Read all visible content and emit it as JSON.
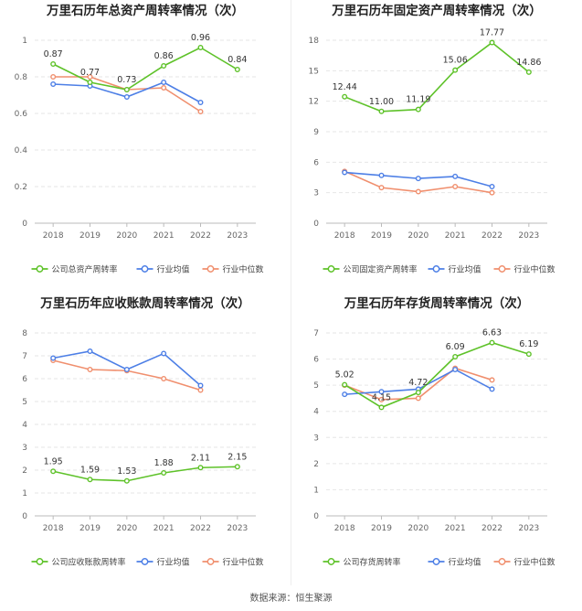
{
  "source": "数据来源：恒生聚源",
  "colors": {
    "company": "#5ec229",
    "avg": "#4d7fe6",
    "median": "#f08f6e"
  },
  "chart_data": [
    {
      "type": "line",
      "title": "万里石历年总资产周转率情况（次）",
      "categories": [
        "2018",
        "2019",
        "2020",
        "2021",
        "2022",
        "2023"
      ],
      "yticks": [
        0,
        0.2,
        0.4,
        0.6,
        0.8,
        1
      ],
      "ytick_labels": [
        "0",
        "0.2",
        "0.4",
        "0.6",
        "0.8",
        "1"
      ],
      "ylim": [
        0,
        1
      ],
      "series": [
        {
          "name": "公司总资产周转率",
          "key": "company",
          "values": [
            0.87,
            0.77,
            0.73,
            0.86,
            0.96,
            0.84
          ],
          "labels": [
            "0.87",
            "0.77",
            "0.73",
            "0.86",
            "0.96",
            "0.84"
          ]
        },
        {
          "name": "行业均值",
          "key": "avg",
          "values": [
            0.76,
            0.75,
            0.69,
            0.77,
            0.66,
            null
          ]
        },
        {
          "name": "行业中位数",
          "key": "median",
          "values": [
            0.8,
            0.8,
            0.73,
            0.74,
            0.61,
            null
          ]
        }
      ]
    },
    {
      "type": "line",
      "title": "万里石历年固定资产周转率情况（次）",
      "categories": [
        "2018",
        "2019",
        "2020",
        "2021",
        "2022",
        "2023"
      ],
      "yticks": [
        0,
        3,
        6,
        9,
        12,
        15,
        18
      ],
      "ytick_labels": [
        "0",
        "3",
        "6",
        "9",
        "12",
        "15",
        "18"
      ],
      "ylim": [
        0,
        18
      ],
      "series": [
        {
          "name": "公司固定资产周转率",
          "key": "company",
          "values": [
            12.44,
            11.0,
            11.19,
            15.06,
            17.77,
            14.86
          ],
          "labels": [
            "12.44",
            "11.00",
            "11.19",
            "15.06",
            "17.77",
            "14.86"
          ]
        },
        {
          "name": "行业均值",
          "key": "avg",
          "values": [
            5.0,
            4.7,
            4.4,
            4.6,
            3.6,
            null
          ]
        },
        {
          "name": "行业中位数",
          "key": "median",
          "values": [
            5.1,
            3.5,
            3.1,
            3.6,
            3.0,
            null
          ]
        }
      ]
    },
    {
      "type": "line",
      "title": "万里石历年应收账款周转率情况（次）",
      "categories": [
        "2018",
        "2019",
        "2020",
        "2021",
        "2022",
        "2023"
      ],
      "yticks": [
        0,
        1,
        2,
        3,
        4,
        5,
        6,
        7,
        8
      ],
      "ytick_labels": [
        "0",
        "1",
        "2",
        "3",
        "4",
        "5",
        "6",
        "7",
        "8"
      ],
      "ylim": [
        0,
        8
      ],
      "series": [
        {
          "name": "公司应收账款周转率",
          "key": "company",
          "values": [
            1.95,
            1.59,
            1.53,
            1.88,
            2.11,
            2.15
          ],
          "labels": [
            "1.95",
            "1.59",
            "1.53",
            "1.88",
            "2.11",
            "2.15"
          ]
        },
        {
          "name": "行业均值",
          "key": "avg",
          "values": [
            6.9,
            7.2,
            6.4,
            7.1,
            5.7,
            null
          ]
        },
        {
          "name": "行业中位数",
          "key": "median",
          "values": [
            6.8,
            6.4,
            6.35,
            6.0,
            5.5,
            null
          ]
        }
      ]
    },
    {
      "type": "line",
      "title": "万里石历年存货周转率情况（次）",
      "categories": [
        "2018",
        "2019",
        "2020",
        "2021",
        "2022",
        "2023"
      ],
      "yticks": [
        0,
        1,
        2,
        3,
        4,
        5,
        6,
        7
      ],
      "ytick_labels": [
        "0",
        "1",
        "2",
        "3",
        "4",
        "5",
        "6",
        "7"
      ],
      "ylim": [
        0,
        7
      ],
      "series": [
        {
          "name": "公司存货周转率",
          "key": "company",
          "values": [
            5.02,
            4.15,
            4.72,
            6.09,
            6.63,
            6.19
          ],
          "labels": [
            "5.02",
            "4.15",
            "4.72",
            "6.09",
            "6.63",
            "6.19"
          ]
        },
        {
          "name": "行业均值",
          "key": "avg",
          "values": [
            4.65,
            4.75,
            4.85,
            5.6,
            4.85,
            null
          ]
        },
        {
          "name": "行业中位数",
          "key": "median",
          "values": [
            5.0,
            4.45,
            4.5,
            5.65,
            5.2,
            null
          ]
        }
      ]
    }
  ]
}
